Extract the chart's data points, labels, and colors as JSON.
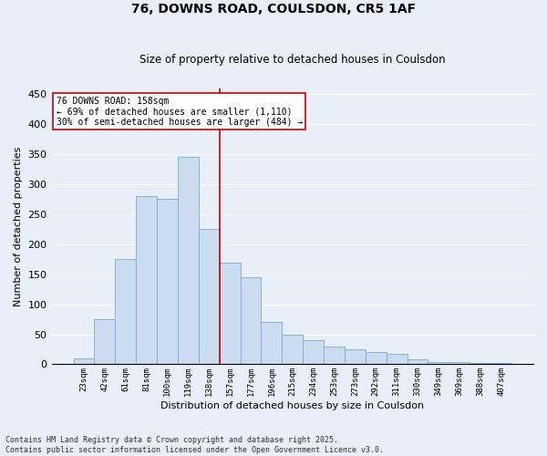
{
  "title": "76, DOWNS ROAD, COULSDON, CR5 1AF",
  "subtitle": "Size of property relative to detached houses in Coulsdon",
  "xlabel": "Distribution of detached houses by size in Coulsdon",
  "ylabel": "Number of detached properties",
  "categories": [
    "23sqm",
    "42sqm",
    "61sqm",
    "81sqm",
    "100sqm",
    "119sqm",
    "138sqm",
    "157sqm",
    "177sqm",
    "196sqm",
    "215sqm",
    "234sqm",
    "253sqm",
    "273sqm",
    "292sqm",
    "311sqm",
    "330sqm",
    "349sqm",
    "369sqm",
    "388sqm",
    "407sqm"
  ],
  "values": [
    10,
    75,
    175,
    280,
    275,
    345,
    225,
    170,
    145,
    70,
    50,
    40,
    30,
    25,
    20,
    18,
    8,
    3,
    3,
    2,
    2
  ],
  "bar_color": "#ccdcf0",
  "bar_edge_color": "#7aabcf",
  "ref_line_color": "#cc0000",
  "annotation_text": "76 DOWNS ROAD: 158sqm\n← 69% of detached houses are smaller (1,110)\n30% of semi-detached houses are larger (484) →",
  "annotation_box_edgecolor": "#cc0000",
  "footnote1": "Contains HM Land Registry data © Crown copyright and database right 2025.",
  "footnote2": "Contains public sector information licensed under the Open Government Licence v3.0.",
  "background_color": "#e8eff8",
  "ylim": [
    0,
    460
  ],
  "yticks": [
    0,
    50,
    100,
    150,
    200,
    250,
    300,
    350,
    400,
    450
  ],
  "figsize": [
    6.0,
    5.0
  ],
  "dpi": 100
}
